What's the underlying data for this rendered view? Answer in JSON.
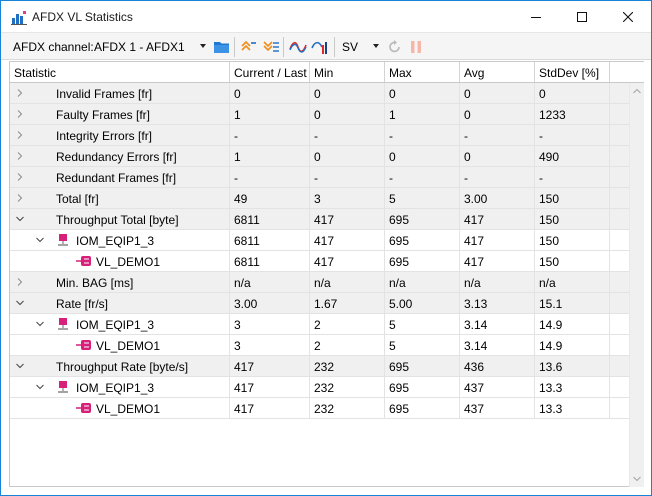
{
  "window": {
    "title": "AFDX VL Statistics"
  },
  "toolbar": {
    "channel_label": "AFDX channel:",
    "channel_value": "AFDX 1 - AFDX1",
    "mode_value": "SV"
  },
  "columns": [
    "Statistic",
    "Current / Last",
    "Min",
    "Max",
    "Avg",
    "StdDev [%]"
  ],
  "rows": [
    {
      "kind": "group",
      "expander": "collapsed",
      "label": "Invalid Frames [fr]",
      "values": [
        "0",
        "0",
        "0",
        "0",
        "0"
      ]
    },
    {
      "kind": "group",
      "expander": "collapsed",
      "label": "Faulty Frames [fr]",
      "values": [
        "1",
        "0",
        "1",
        "0",
        "1233"
      ]
    },
    {
      "kind": "group",
      "expander": "collapsed",
      "label": "Integrity Errors [fr]",
      "values": [
        "-",
        "-",
        "-",
        "-",
        "-"
      ]
    },
    {
      "kind": "group",
      "expander": "collapsed",
      "label": "Redundancy Errors [fr]",
      "values": [
        "1",
        "0",
        "0",
        "0",
        "490"
      ]
    },
    {
      "kind": "group",
      "expander": "collapsed",
      "label": "Redundant Frames [fr]",
      "values": [
        "-",
        "-",
        "-",
        "-",
        "-"
      ]
    },
    {
      "kind": "group",
      "expander": "collapsed",
      "label": "Total [fr]",
      "values": [
        "49",
        "3",
        "5",
        "3.00",
        "150"
      ]
    },
    {
      "kind": "group",
      "expander": "expanded",
      "label": "Throughput Total [byte]",
      "values": [
        "6811",
        "417",
        "695",
        "417",
        "150"
      ]
    },
    {
      "kind": "device",
      "expander": "expanded",
      "label": "IOM_EQIP1_3",
      "values": [
        "6811",
        "417",
        "695",
        "417",
        "150"
      ]
    },
    {
      "kind": "vl",
      "label": "VL_DEMO1",
      "values": [
        "6811",
        "417",
        "695",
        "417",
        "150"
      ]
    },
    {
      "kind": "group",
      "expander": "collapsed",
      "label": "Min. BAG [ms]",
      "values": [
        "n/a",
        "n/a",
        "n/a",
        "n/a",
        "n/a"
      ]
    },
    {
      "kind": "group",
      "expander": "expanded",
      "label": "Rate [fr/s]",
      "values": [
        "3.00",
        "1.67",
        "5.00",
        "3.13",
        "15.1"
      ]
    },
    {
      "kind": "device",
      "expander": "expanded",
      "label": "IOM_EQIP1_3",
      "values": [
        "3",
        "2",
        "5",
        "3.14",
        "14.9"
      ]
    },
    {
      "kind": "vl",
      "label": "VL_DEMO1",
      "values": [
        "3",
        "2",
        "5",
        "3.14",
        "14.9"
      ]
    },
    {
      "kind": "group",
      "expander": "expanded",
      "label": "Throughput Rate [byte/s]",
      "values": [
        "417",
        "232",
        "695",
        "436",
        "13.6"
      ]
    },
    {
      "kind": "device",
      "expander": "expanded",
      "label": "IOM_EQIP1_3",
      "values": [
        "417",
        "232",
        "695",
        "437",
        "13.3"
      ]
    },
    {
      "kind": "vl",
      "label": "VL_DEMO1",
      "values": [
        "417",
        "232",
        "695",
        "437",
        "13.3"
      ]
    }
  ]
}
